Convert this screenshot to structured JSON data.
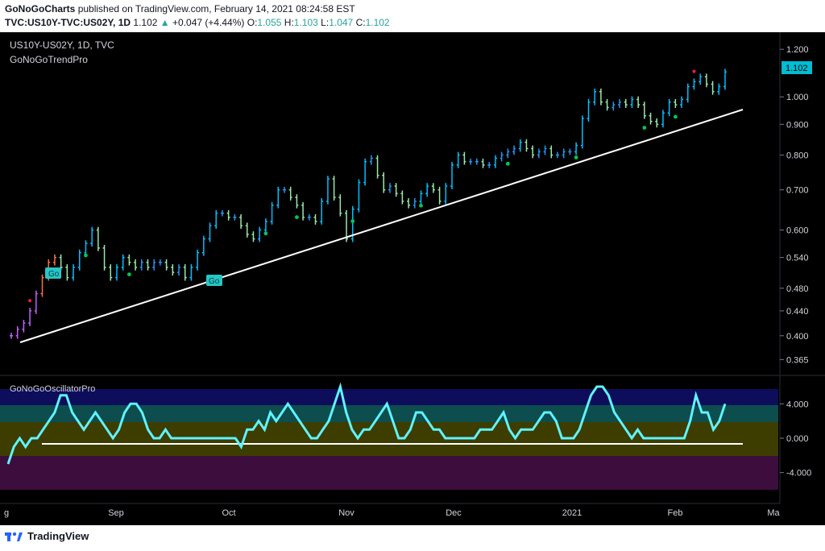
{
  "header": {
    "publisher": "GoNoGoCharts",
    "published_text": "published on TradingView.com, February 14, 2021 08:24:58 EST",
    "symbol": "TVC:US10Y-TVC:US02Y, 1D",
    "last": "1.102",
    "change_arrow": "▲",
    "change": "+0.047 (+4.44%)",
    "o_label": "O:",
    "o": "1.055",
    "h_label": "H:",
    "h": "1.103",
    "l_label": "L:",
    "l": "1.047",
    "c_label": "C:",
    "c": "1.102"
  },
  "chart_data": [
    {
      "type": "line",
      "title": "US10Y-US02Y, 1D, TVC",
      "indicator": "GoNoGoTrendPro",
      "y_scale": "log",
      "ylim": [
        0.35,
        1.25
      ],
      "yticks": [
        "1.200",
        "1.000",
        "0.900",
        "0.800",
        "0.700",
        "0.600",
        "0.540",
        "0.480",
        "0.440",
        "0.400",
        "0.365"
      ],
      "last_price_label": "1.102",
      "x_labels": [
        "g",
        "Sep",
        "Oct",
        "Nov",
        "Dec",
        "2021",
        "Feb",
        "Ma"
      ],
      "series": [
        {
          "values": [
            0.4,
            0.41,
            0.42,
            0.44,
            0.47,
            0.5,
            0.53,
            0.54,
            0.52,
            0.5,
            0.52,
            0.55,
            0.57,
            0.6,
            0.56,
            0.52,
            0.5,
            0.52,
            0.54,
            0.53,
            0.52,
            0.53,
            0.52,
            0.53,
            0.53,
            0.52,
            0.51,
            0.52,
            0.5,
            0.52,
            0.55,
            0.58,
            0.61,
            0.64,
            0.64,
            0.63,
            0.63,
            0.61,
            0.59,
            0.58,
            0.6,
            0.62,
            0.66,
            0.7,
            0.7,
            0.68,
            0.66,
            0.63,
            0.63,
            0.62,
            0.67,
            0.73,
            0.68,
            0.64,
            0.58,
            0.65,
            0.72,
            0.78,
            0.79,
            0.74,
            0.7,
            0.71,
            0.69,
            0.67,
            0.66,
            0.67,
            0.69,
            0.71,
            0.7,
            0.67,
            0.71,
            0.77,
            0.8,
            0.78,
            0.78,
            0.78,
            0.77,
            0.77,
            0.79,
            0.8,
            0.81,
            0.82,
            0.84,
            0.82,
            0.8,
            0.81,
            0.82,
            0.8,
            0.8,
            0.81,
            0.81,
            0.83,
            0.92,
            0.98,
            1.02,
            0.98,
            0.96,
            0.97,
            0.98,
            0.97,
            0.99,
            0.97,
            0.93,
            0.91,
            0.9,
            0.94,
            0.98,
            0.97,
            0.99,
            1.04,
            1.06,
            1.08,
            1.05,
            1.02,
            1.04,
            1.1
          ]
        }
      ],
      "trendline_label": "",
      "go_labels": [
        "Go",
        "Go"
      ]
    },
    {
      "type": "line",
      "title": "GoNoGoOscillatorPro",
      "ylim": [
        -6,
        6
      ],
      "yticks": [
        "4.000",
        "0.000",
        "-4.000"
      ],
      "series": [
        {
          "values": [
            -3,
            -1,
            0,
            -1,
            0,
            0,
            1,
            2,
            3,
            5,
            5,
            3,
            2,
            1,
            2,
            3,
            2,
            1,
            0,
            1,
            3,
            4,
            4,
            3,
            1,
            0,
            0,
            1,
            0,
            0,
            0,
            0,
            0,
            0,
            0,
            0,
            0,
            0,
            0,
            0,
            -1,
            1,
            1,
            2,
            1,
            3,
            2,
            3,
            4,
            3,
            2,
            1,
            0,
            0,
            1,
            2,
            4,
            6,
            3,
            1,
            0,
            1,
            1,
            2,
            3,
            4,
            2,
            0,
            0,
            1,
            3,
            3,
            2,
            1,
            1,
            0,
            0,
            0,
            0,
            0,
            0,
            1,
            1,
            1,
            2,
            3,
            1,
            0,
            1,
            1,
            1,
            2,
            3,
            3,
            2,
            0,
            0,
            0,
            1,
            3,
            5,
            6,
            6,
            5,
            3,
            2,
            1,
            0,
            1,
            0,
            0,
            0,
            0,
            0,
            0,
            0,
            0,
            2,
            5,
            3,
            3,
            1,
            2,
            4
          ]
        }
      ]
    }
  ],
  "colors": {
    "up_bar": "#2196f3",
    "strong_up_bar": "#00bfff",
    "weak_up_bar": "#9be7a8",
    "down_bar": "#ff7043",
    "purple_bar": "#c060ff",
    "oscillator_line": "#5ff3ff",
    "trendline": "#ffffff",
    "dot_green": "#00c853",
    "dot_red": "#ff1744",
    "last_price_bg": "#00bcd4",
    "axis_text": "#d1d4dc"
  },
  "footer": {
    "brand": "TradingView"
  }
}
